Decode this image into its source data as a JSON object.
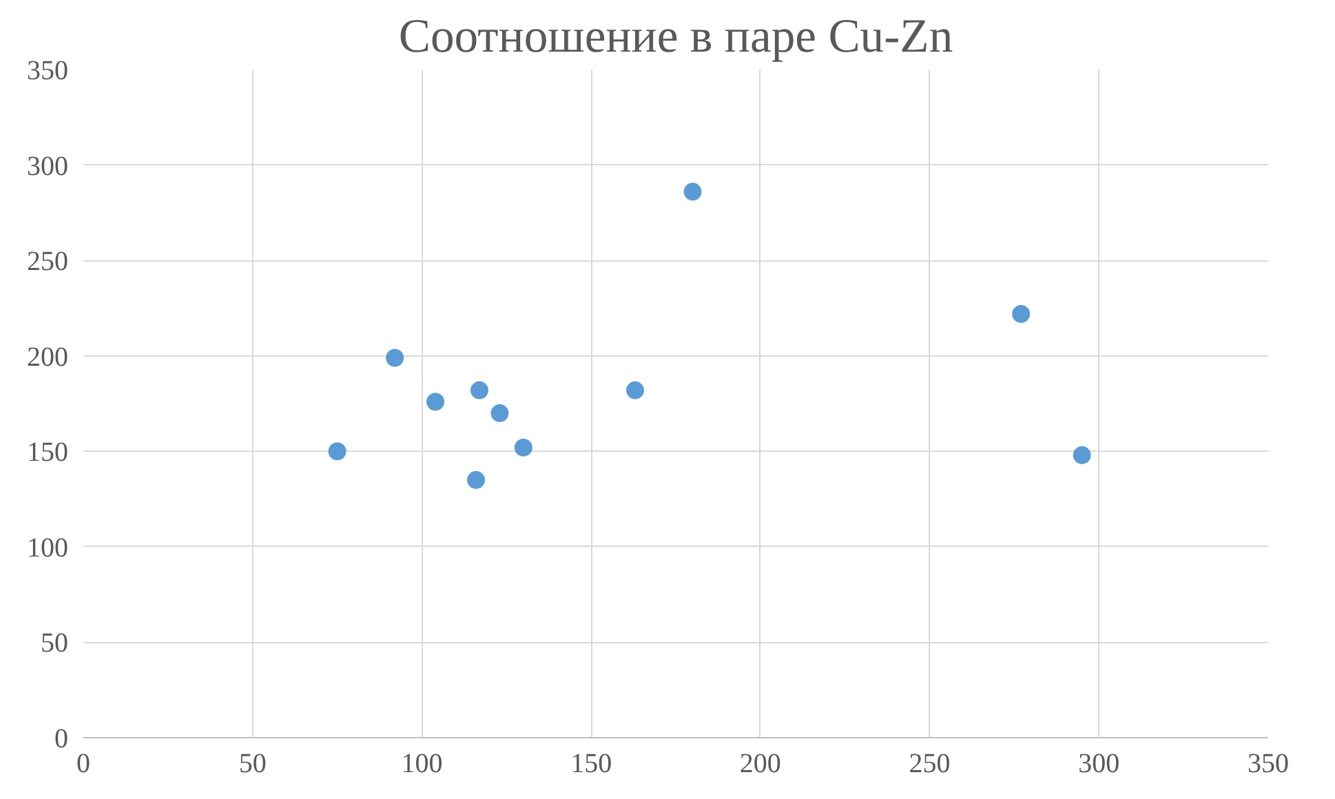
{
  "chart_data": {
    "type": "scatter",
    "title": "Соотношение в паре Cu-Zn",
    "x": [
      75,
      92,
      104,
      117,
      116,
      123,
      130,
      163,
      180,
      277,
      295
    ],
    "values": [
      150,
      199,
      176,
      182,
      135,
      170,
      152,
      182,
      286,
      222,
      148
    ],
    "color": "#5b9bd5",
    "marker": "circle",
    "xlim": [
      0,
      350
    ],
    "xticks": [
      0,
      50,
      100,
      150,
      200,
      250,
      300,
      350
    ],
    "ylim": [
      0,
      350
    ],
    "yticks": [
      0,
      50,
      100,
      150,
      200,
      250,
      300,
      350
    ],
    "grid": true
  }
}
